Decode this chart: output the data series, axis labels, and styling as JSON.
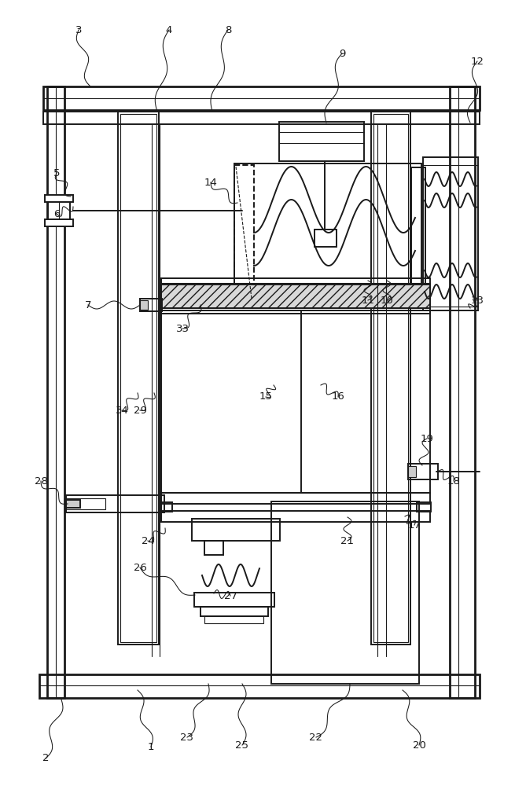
{
  "bg": "#ffffff",
  "lc": "#1a1a1a",
  "lw_thick": 2.0,
  "lw_med": 1.4,
  "lw_thin": 0.8,
  "label_fs": 9.5,
  "fig_w": 6.55,
  "fig_h": 10.0,
  "dpi": 100,
  "leaders": [
    [
      "1",
      192,
      950,
      175,
      878
    ],
    [
      "2",
      58,
      965,
      78,
      890
    ],
    [
      "3",
      100,
      38,
      115,
      110
    ],
    [
      "4",
      215,
      38,
      200,
      142
    ],
    [
      "5",
      72,
      220,
      90,
      250
    ],
    [
      "6",
      72,
      272,
      93,
      263
    ],
    [
      "7",
      112,
      388,
      178,
      388
    ],
    [
      "8",
      290,
      38,
      270,
      142
    ],
    [
      "9",
      435,
      68,
      415,
      156
    ],
    [
      "10",
      492,
      382,
      492,
      357
    ],
    [
      "11",
      468,
      382,
      468,
      357
    ],
    [
      "12",
      607,
      78,
      598,
      156
    ],
    [
      "13",
      607,
      382,
      598,
      392
    ],
    [
      "14",
      268,
      232,
      302,
      258
    ],
    [
      "15",
      338,
      505,
      348,
      490
    ],
    [
      "16",
      430,
      505,
      408,
      490
    ],
    [
      "17",
      527,
      668,
      515,
      657
    ],
    [
      "18",
      577,
      612,
      557,
      600
    ],
    [
      "19",
      543,
      558,
      537,
      592
    ],
    [
      "20",
      533,
      948,
      512,
      878
    ],
    [
      "21",
      442,
      688,
      442,
      658
    ],
    [
      "22",
      402,
      938,
      445,
      870
    ],
    [
      "23",
      238,
      938,
      265,
      870
    ],
    [
      "24",
      188,
      688,
      210,
      672
    ],
    [
      "25",
      308,
      948,
      308,
      870
    ],
    [
      "26",
      178,
      722,
      248,
      757
    ],
    [
      "27",
      293,
      758,
      272,
      755
    ],
    [
      "28",
      52,
      612,
      86,
      641
    ],
    [
      "29",
      178,
      522,
      196,
      500
    ],
    [
      "33",
      232,
      418,
      255,
      388
    ],
    [
      "34",
      155,
      522,
      175,
      500
    ]
  ]
}
